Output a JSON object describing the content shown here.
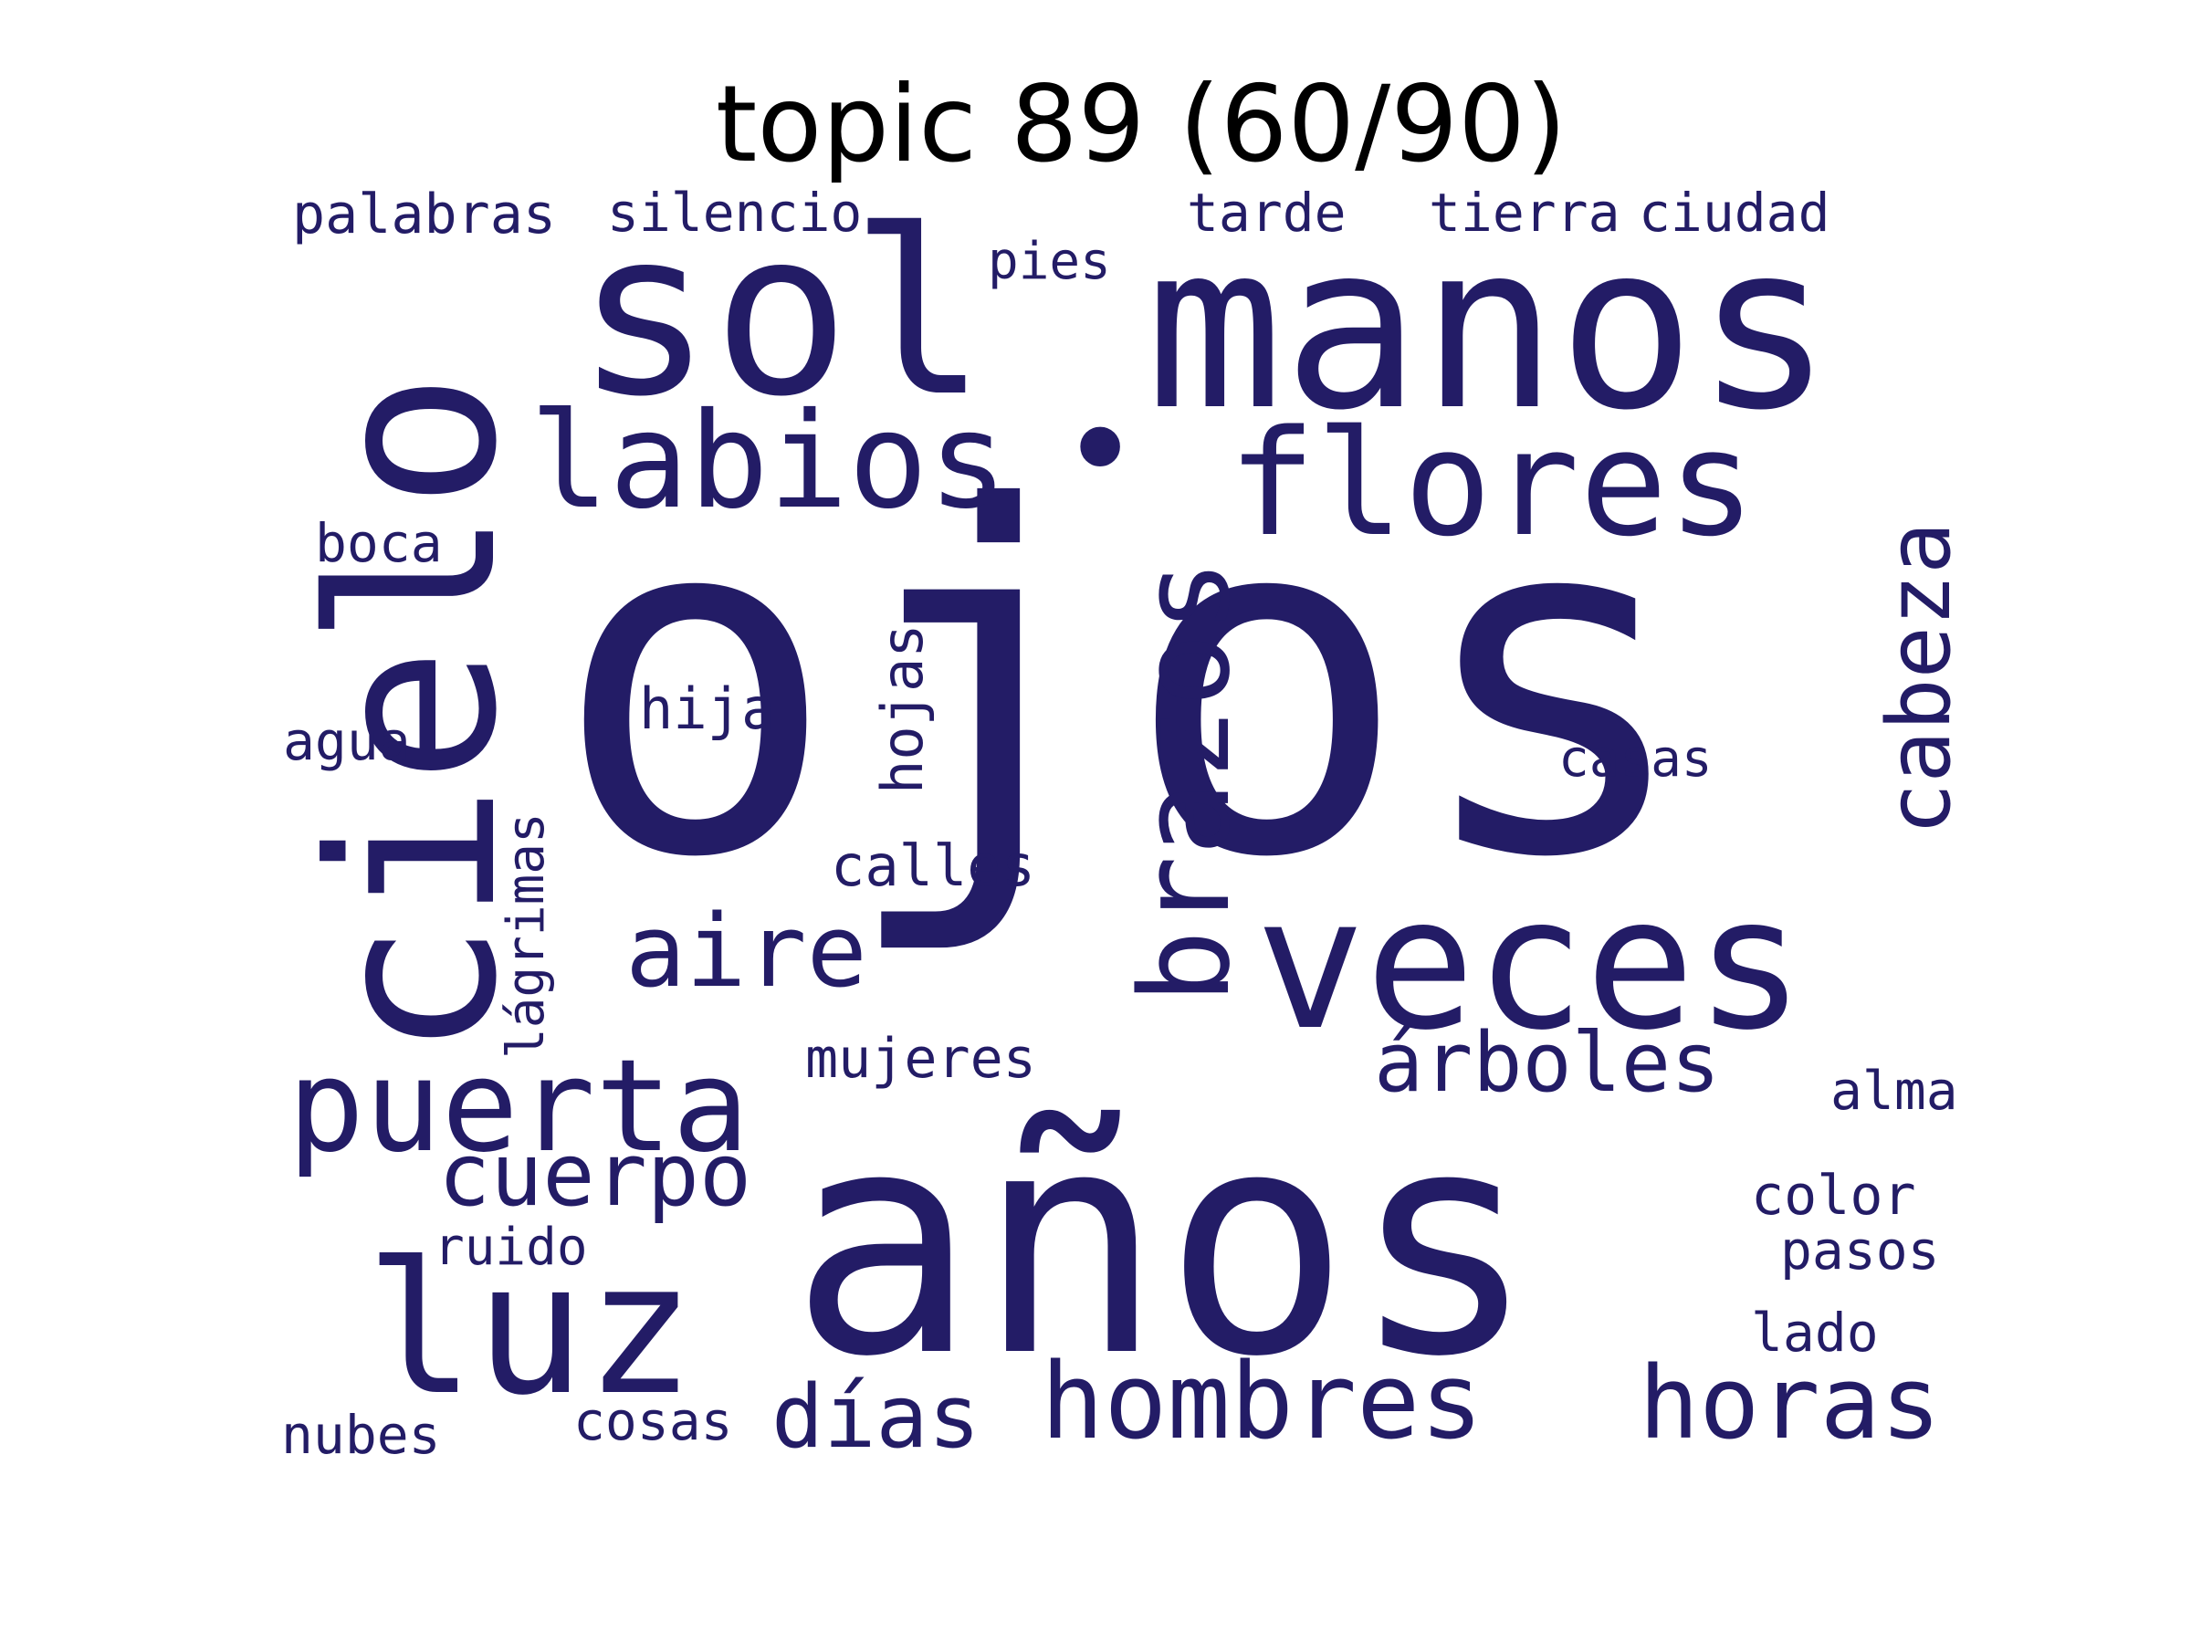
{
  "title": "topic 89 (60/90)",
  "word_color": "#231c66",
  "words": [
    "ojos",
    "años",
    "manos",
    "sol",
    "cielo",
    "veces",
    "flores",
    "labios",
    "luz",
    "puerta",
    "brazos",
    "cabeza",
    "hombres",
    "horas",
    "aire",
    "cuerpo",
    "días",
    "árboles",
    "palabras",
    "silencio",
    "tarde",
    "tierra",
    "ciudad",
    "pies",
    "boca",
    "hija",
    "hojas",
    "agua",
    "casas",
    "calles",
    "lágrimas",
    "mujeres",
    "alma",
    "color",
    "ruido",
    "pasos",
    "lado",
    "cosas",
    "nubes",
    "•"
  ]
}
